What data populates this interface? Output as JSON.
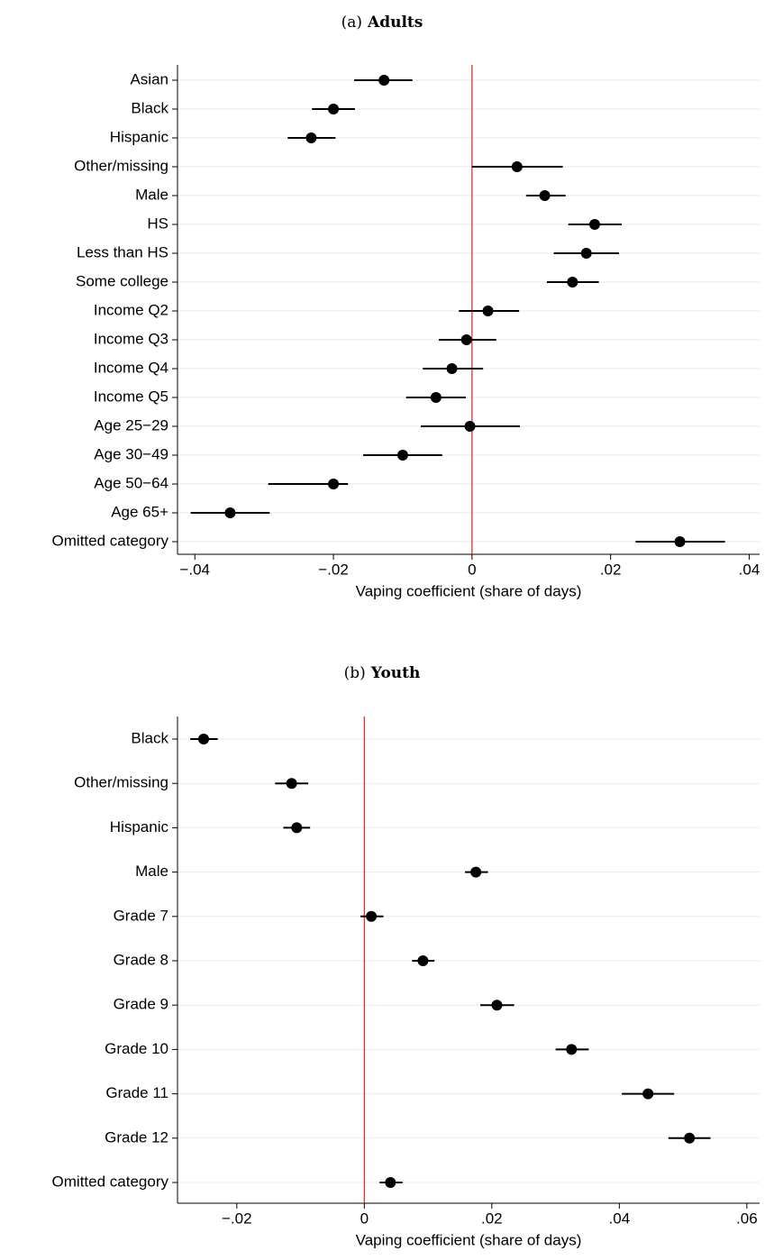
{
  "chart_data": [
    {
      "type": "coefplot",
      "panel_label": "(a)",
      "title": "Adults",
      "x_label": "Vaping coefficient (share of days)",
      "categories": [
        "Asian",
        "Black",
        "Hispanic",
        "Other/missing",
        "Male",
        "HS",
        "Less than HS",
        "Some college",
        "Income Q2",
        "Income Q3",
        "Income Q4",
        "Income Q5",
        "Age 25−29",
        "Age 30−49",
        "Age 50−64",
        "Age 65+",
        "Omitted category"
      ],
      "values": [
        -0.0127,
        -0.02,
        -0.0232,
        0.0065,
        0.0105,
        0.0177,
        0.0165,
        0.0145,
        0.0023,
        -0.0008,
        -0.0029,
        -0.0052,
        -0.0003,
        -0.01,
        -0.02,
        -0.0349,
        0.03
      ],
      "ci_low": [
        -0.017,
        -0.0231,
        -0.0266,
        0.0,
        0.0078,
        0.0139,
        0.0118,
        0.0108,
        -0.0019,
        -0.0048,
        -0.0071,
        -0.0095,
        -0.0074,
        -0.0157,
        -0.0294,
        -0.0406,
        0.0236
      ],
      "ci_high": [
        -0.0086,
        -0.0169,
        -0.0197,
        0.0131,
        0.0135,
        0.0216,
        0.0212,
        0.0183,
        0.0068,
        0.0035,
        0.0016,
        -0.0009,
        0.0069,
        -0.0043,
        -0.0179,
        -0.0292,
        0.0365
      ],
      "xlim": [
        -0.0425,
        0.0415
      ],
      "xticks": [
        {
          "value": -0.04,
          "label": "−.04"
        },
        {
          "value": -0.02,
          "label": "−.02"
        },
        0,
        {
          "value": 0.02,
          "label": ".02"
        },
        {
          "value": 0.04,
          "label": ".04"
        }
      ],
      "reference_line": 0,
      "reference_color": "#e0201c",
      "color": "#000000",
      "grid": true
    },
    {
      "type": "coefplot",
      "panel_label": "(b)",
      "title": "Youth",
      "x_label": "Vaping coefficient (share of days)",
      "categories": [
        "Black",
        "Other/missing",
        "Hispanic",
        "Male",
        "Grade 7",
        "Grade 8",
        "Grade 9",
        "Grade 10",
        "Grade 11",
        "Grade 12",
        "Omitted category"
      ],
      "values": [
        -0.0252,
        -0.0114,
        -0.0106,
        0.0175,
        0.0011,
        0.0092,
        0.0208,
        0.0325,
        0.0445,
        0.051,
        0.0041
      ],
      "ci_low": [
        -0.0273,
        -0.014,
        -0.0127,
        0.0158,
        -0.0006,
        0.0075,
        0.0182,
        0.03,
        0.0404,
        0.0477,
        0.0024
      ],
      "ci_high": [
        -0.023,
        -0.0088,
        -0.0085,
        0.0194,
        0.003,
        0.011,
        0.0235,
        0.0352,
        0.0486,
        0.0543,
        0.006
      ],
      "xlim": [
        -0.0293,
        0.062
      ],
      "xticks": [
        {
          "value": -0.02,
          "label": "−.02"
        },
        0,
        {
          "value": 0.02,
          "label": ".02"
        },
        {
          "value": 0.04,
          "label": ".04"
        },
        {
          "value": 0.06,
          "label": ".06"
        }
      ],
      "reference_line": 0,
      "reference_color": "#e0201c",
      "color": "#000000",
      "grid": true
    }
  ]
}
